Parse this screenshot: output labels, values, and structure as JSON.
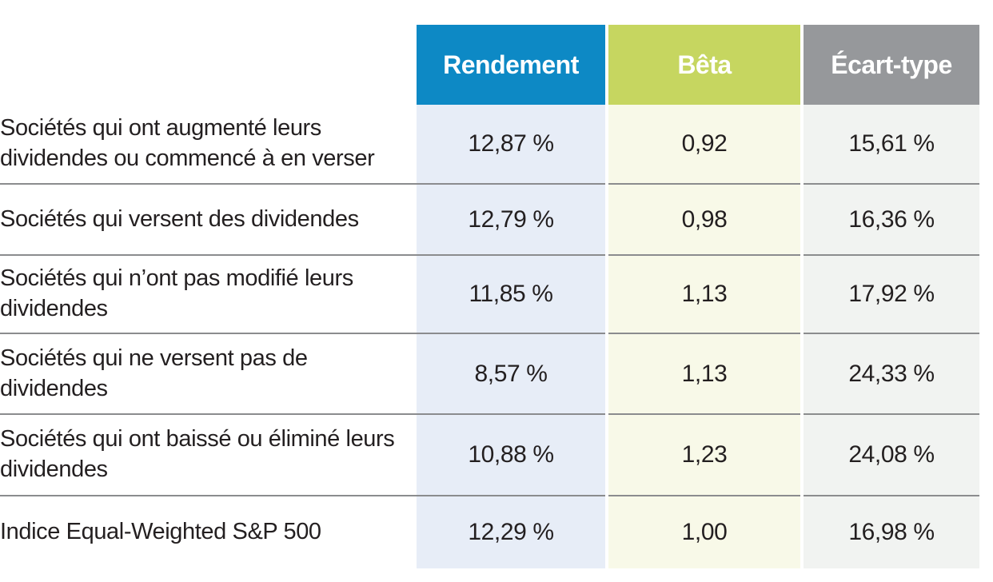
{
  "chart_data": {
    "type": "table",
    "columns": [
      "Rendement",
      "Bêta",
      "Écart-type"
    ],
    "rows": [
      {
        "label": "Sociétés qui ont augmenté leurs dividendes ou commencé à en verser",
        "values": [
          "12,87 %",
          "0,92",
          "15,61 %"
        ]
      },
      {
        "label": "Sociétés qui versent des dividendes",
        "values": [
          "12,79 %",
          "0,98",
          "16,36 %"
        ]
      },
      {
        "label": "Sociétés qui n’ont pas modifié leurs dividendes",
        "values": [
          "11,85 %",
          "1,13",
          "17,92 %"
        ]
      },
      {
        "label": "Sociétés qui ne versent pas de dividendes",
        "values": [
          "8,57 %",
          "1,13",
          "24,33 %"
        ]
      },
      {
        "label": "Sociétés qui ont baissé ou éliminé leurs dividendes",
        "values": [
          "10,88 %",
          "1,23",
          "24,08 %"
        ]
      },
      {
        "label": "Indice Equal-Weighted S&P 500",
        "values": [
          "12,29 %",
          "1,00",
          "16,98 %"
        ]
      }
    ]
  },
  "colors": {
    "header": [
      "#0d89c5",
      "#c6d660",
      "#96989b"
    ],
    "body": [
      "#e7edf7",
      "#f8f9e8",
      "#f1f3f1"
    ],
    "separator": "#8b8c8e",
    "header_text": "#ffffff",
    "body_text": "#231f20"
  }
}
